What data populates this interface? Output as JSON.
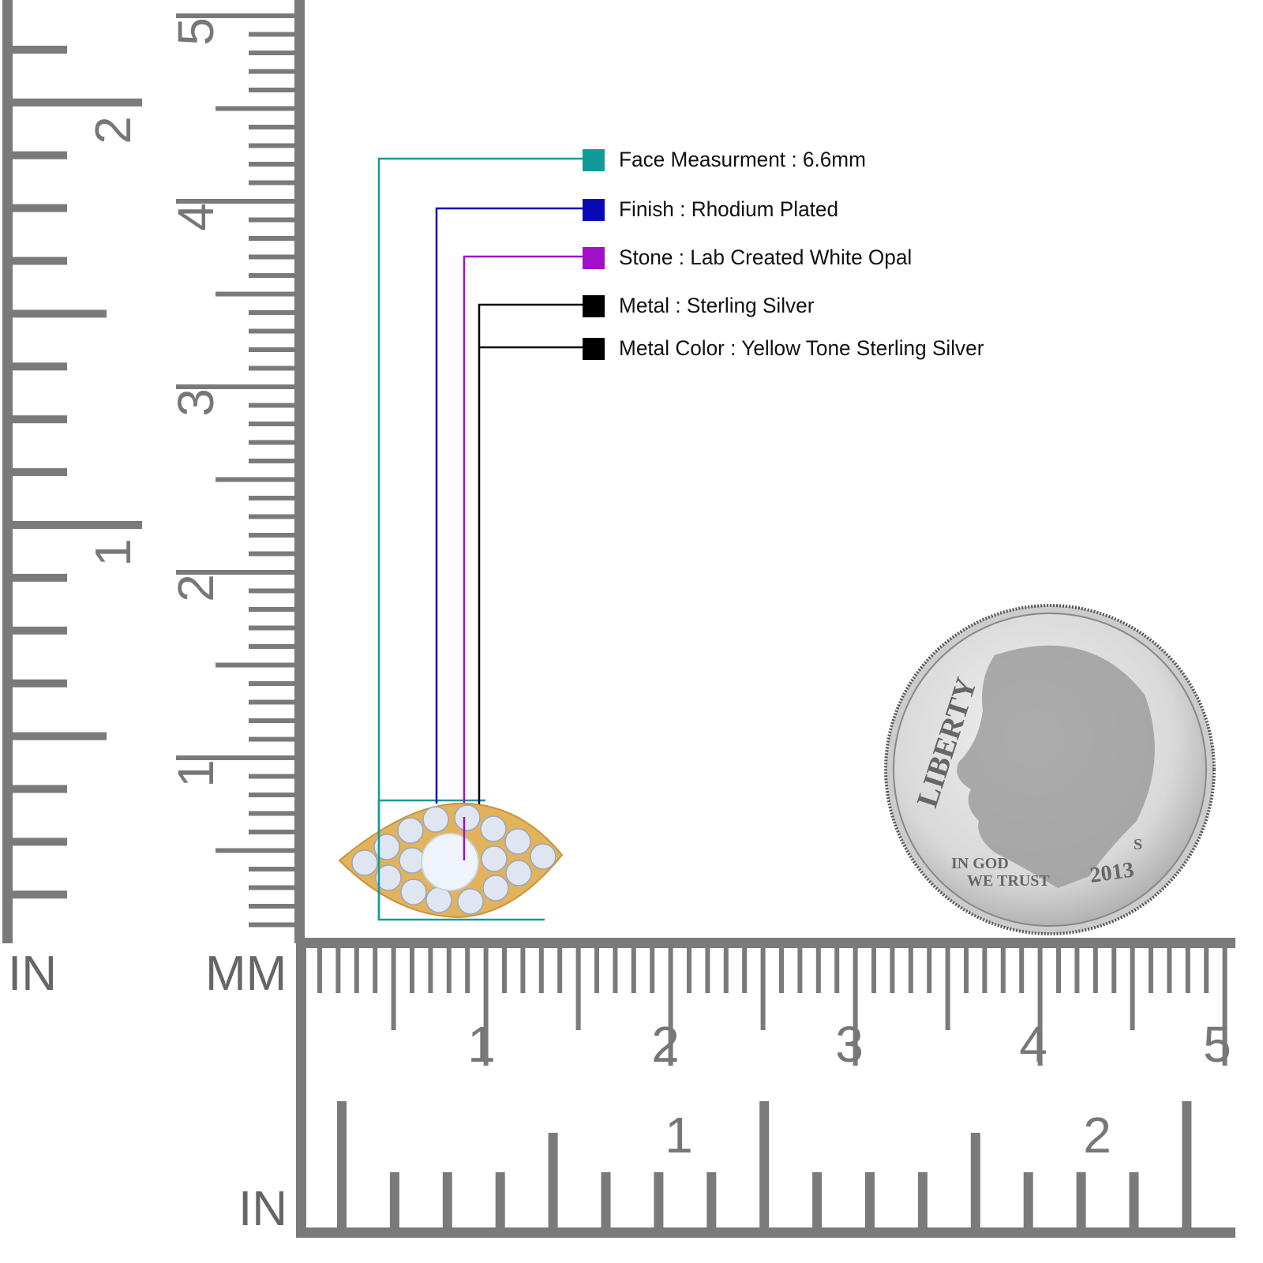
{
  "legend": [
    {
      "label": "Face Measurment : 6.6mm",
      "color": "#129a9a"
    },
    {
      "label": "Finish : Rhodium Plated",
      "color": "#0a0ab4"
    },
    {
      "label": "Stone : Lab Created White Opal",
      "color": "#a010c8"
    },
    {
      "label": "Metal : Sterling Silver",
      "color": "#000000"
    },
    {
      "label": "Metal Color : Yellow Tone Sterling Silver",
      "color": "#000000"
    }
  ],
  "rulers": {
    "left_inch_unit": "IN",
    "left_mm_unit": "MM",
    "bottom_inch_unit": "IN",
    "left_inch_labels": [
      "2",
      "1"
    ],
    "left_mm_labels": [
      "5",
      "4",
      "3",
      "2",
      "1"
    ],
    "bottom_mm_labels": [
      "1",
      "2",
      "3",
      "4",
      "5"
    ],
    "bottom_inch_labels": [
      "1",
      "2"
    ],
    "color": "#7a7a7a"
  },
  "coin": {
    "lettering": [
      "LIBERTY",
      "IN GOD WE TRUST",
      "2013",
      "S"
    ]
  },
  "product": {
    "metal_color": "#e2b35a",
    "stone_color": "#eef4fa"
  }
}
